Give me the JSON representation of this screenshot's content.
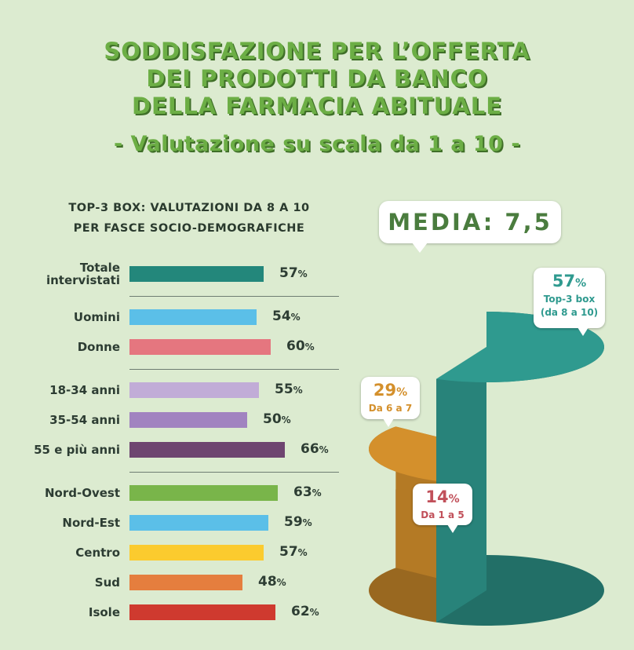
{
  "header": {
    "title_lines": [
      "SODDISFAZIONE PER L’OFFERTA",
      "DEI PRODOTTI DA BANCO",
      "DELLA FARMACIA ABITUALE"
    ],
    "subtitle": "- Valutazione su scala da 1 a 10 -"
  },
  "bars_heading": [
    "TOP-3 BOX: VALUTAZIONI DA 8 A 10",
    "PER FASCE SOCIO-DEMOGRAFICHE"
  ],
  "media_label": "MEDIA: 7,5",
  "chart_data": [
    {
      "type": "bar",
      "orientation": "horizontal",
      "title": "TOP-3 BOX: VALUTAZIONI DA 8 A 10 PER FASCE SOCIO-DEMOGRAFICHE",
      "unit": "%",
      "xlim": [
        0,
        100
      ],
      "grid": false,
      "groups": [
        [
          {
            "label": [
              "Totale",
              "intervistati"
            ],
            "value": 57,
            "color": "#23877b"
          }
        ],
        [
          {
            "label": [
              "Uomini"
            ],
            "value": 54,
            "color": "#5bbfe8"
          },
          {
            "label": [
              "Donne"
            ],
            "value": 60,
            "color": "#e5767f"
          }
        ],
        [
          {
            "label": [
              "18-34 anni"
            ],
            "value": 55,
            "color": "#c1acd7"
          },
          {
            "label": [
              "35-54 anni"
            ],
            "value": 50,
            "color": "#a183c0"
          },
          {
            "label": [
              "55 e più anni"
            ],
            "value": 66,
            "color": "#6e4570"
          }
        ],
        [
          {
            "label": [
              "Nord-Ovest"
            ],
            "value": 63,
            "color": "#79b54a"
          },
          {
            "label": [
              "Nord-Est"
            ],
            "value": 59,
            "color": "#5bbfe8"
          },
          {
            "label": [
              "Centro"
            ],
            "value": 57,
            "color": "#fbcb2e"
          },
          {
            "label": [
              "Sud"
            ],
            "value": 48,
            "color": "#e57e3e"
          },
          {
            "label": [
              "Isole"
            ],
            "value": 62,
            "color": "#cf3a2f"
          }
        ]
      ]
    },
    {
      "type": "pie",
      "style": "3d-cylinder",
      "unit": "%",
      "slices": [
        {
          "value": 57,
          "label": [
            "Top-3 box",
            "(da 8 a 10)"
          ],
          "color": "#2f9a8f"
        },
        {
          "value": 29,
          "label": [
            "Da 6 a 7"
          ],
          "color": "#d4902c"
        },
        {
          "value": 14,
          "label": [
            "Da 1 a 5"
          ],
          "color": "#c1505a"
        }
      ]
    }
  ]
}
